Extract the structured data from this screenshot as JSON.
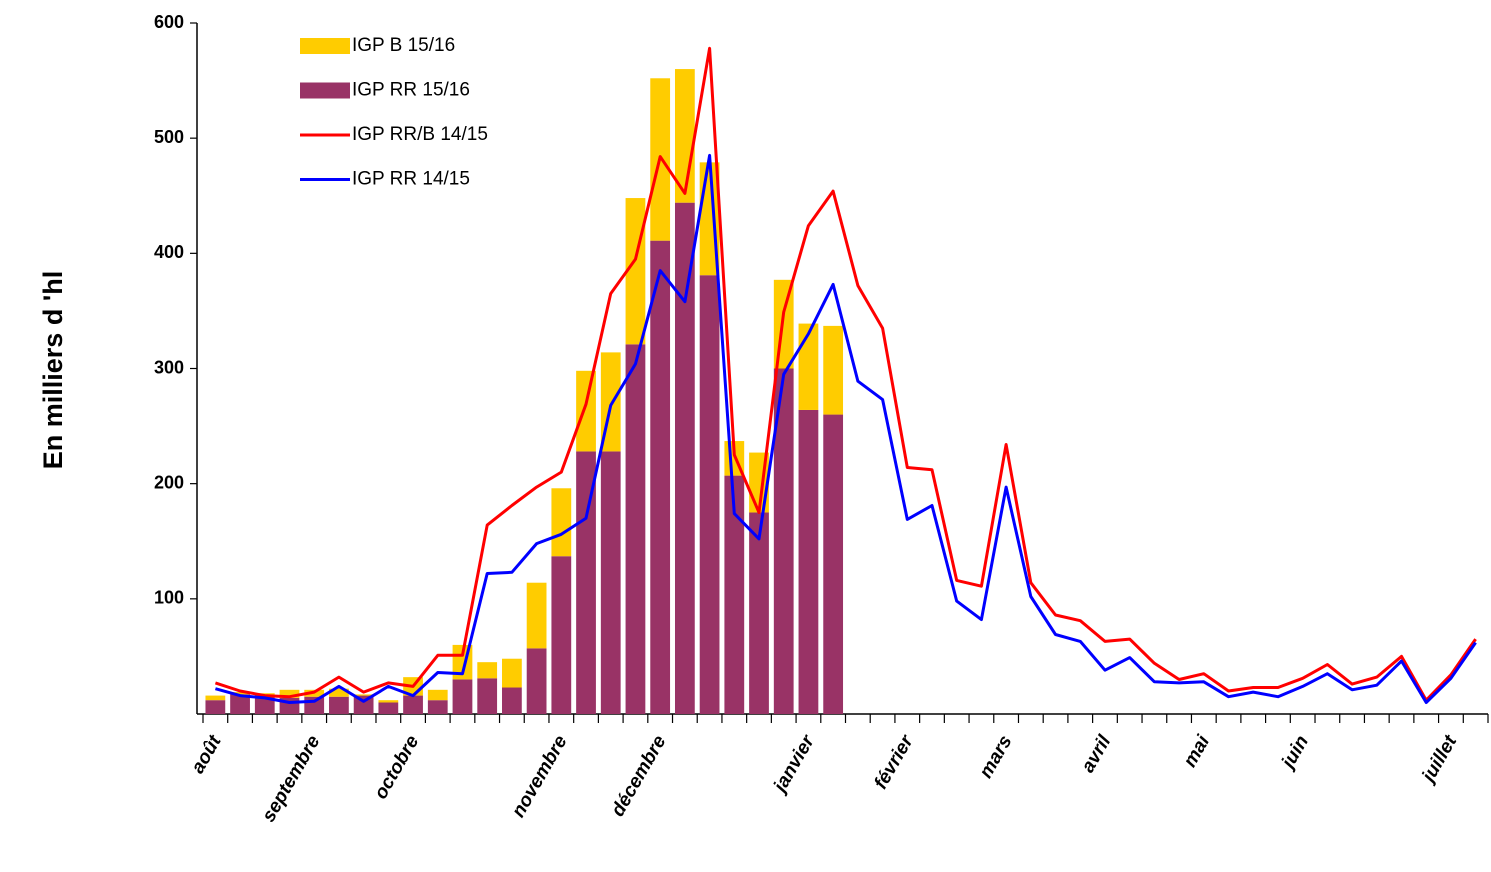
{
  "chart_data": {
    "type": "bar-line",
    "y_label": "En milliers d 'hl",
    "categories": [
      "août",
      null,
      null,
      null,
      "septembre",
      null,
      null,
      null,
      "octobre",
      null,
      null,
      null,
      null,
      null,
      "novembre",
      null,
      null,
      null,
      "décembre",
      null,
      null,
      null,
      null,
      null,
      "janvier",
      null,
      null,
      null,
      "février",
      null,
      null,
      null,
      "mars",
      null,
      null,
      null,
      "avril",
      null,
      null,
      null,
      "mai",
      null,
      null,
      null,
      "juin",
      null,
      null,
      null,
      null,
      null,
      "juillet",
      null
    ],
    "series": [
      {
        "name": "IGP B 15/16",
        "kind": "bar",
        "color": "#ffcc00",
        "values": [
          4,
          2,
          3,
          7,
          6,
          7,
          1,
          2,
          16,
          9,
          30,
          14,
          25,
          57,
          59,
          70,
          86,
          127,
          141,
          116,
          98,
          30,
          52,
          77,
          75,
          77,
          null,
          null,
          null,
          null,
          null,
          null,
          null,
          null,
          null,
          null,
          null,
          null,
          null,
          null,
          null,
          null,
          null,
          null,
          null,
          null,
          null,
          null,
          null,
          null,
          null,
          null
        ]
      },
      {
        "name": "IGP RR 15/16",
        "kind": "bar",
        "color": "#993366",
        "values": [
          12,
          17,
          15,
          14,
          15,
          15,
          16,
          10,
          16,
          12,
          30,
          31,
          23,
          57,
          137,
          228,
          228,
          321,
          411,
          444,
          381,
          207,
          175,
          300,
          264,
          260,
          null,
          null,
          null,
          null,
          null,
          null,
          null,
          null,
          null,
          null,
          null,
          null,
          null,
          null,
          null,
          null,
          null,
          null,
          null,
          null,
          null,
          null,
          null,
          null,
          null,
          null
        ]
      },
      {
        "name": "IGP RR/B 14/15",
        "kind": "line",
        "color": "#ff0000",
        "values": [
          27,
          20,
          16,
          15,
          19,
          32,
          19,
          27,
          24,
          51,
          51,
          164,
          181,
          197,
          210,
          269,
          365,
          395,
          484,
          452,
          578,
          225,
          175,
          349,
          424,
          454,
          372,
          335,
          214,
          212,
          116,
          111,
          234,
          114,
          86,
          81,
          63,
          65,
          44,
          30,
          35,
          20,
          23,
          23,
          31,
          43,
          26,
          32,
          50,
          12,
          34,
          65
        ]
      },
      {
        "name": "IGP RR 14/15",
        "kind": "line",
        "color": "#0000ff",
        "values": [
          22,
          16,
          14,
          10,
          11,
          24,
          11,
          24,
          16,
          36,
          35,
          122,
          123,
          148,
          156,
          170,
          268,
          304,
          385,
          358,
          485,
          174,
          152,
          295,
          330,
          373,
          289,
          273,
          169,
          181,
          98,
          82,
          197,
          102,
          69,
          63,
          38,
          49,
          28,
          27,
          28,
          15,
          19,
          15,
          24,
          35,
          21,
          25,
          46,
          10,
          31,
          62
        ]
      }
    ],
    "ylim": [
      0,
      600
    ],
    "yticks": [
      100,
      200,
      300,
      400,
      500,
      600
    ],
    "legend": "top-left"
  }
}
